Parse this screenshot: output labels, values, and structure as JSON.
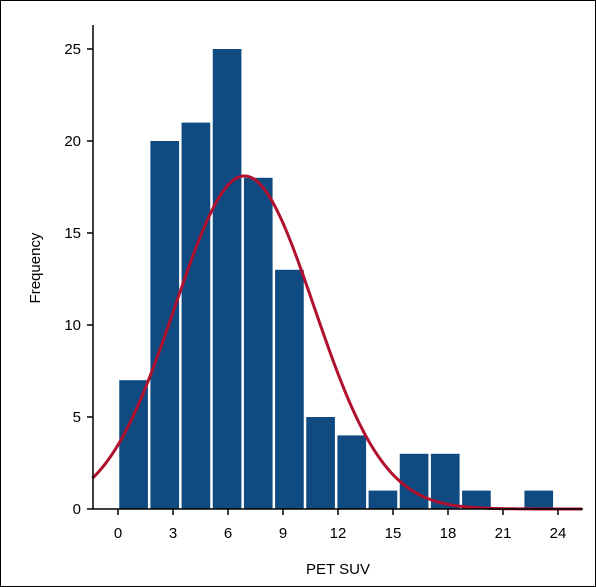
{
  "chart_data": {
    "type": "bar",
    "xlabel": "PET SUV",
    "ylabel": "Frequency",
    "xlim": [
      -1.5,
      25.5
    ],
    "ylim": [
      0,
      26
    ],
    "x_ticks": [
      0,
      3,
      6,
      9,
      12,
      15,
      18,
      21,
      24
    ],
    "y_ticks": [
      0,
      5,
      10,
      15,
      20,
      25
    ],
    "bin_width": 1.7,
    "bins": [
      {
        "start": 0.0,
        "value": 7
      },
      {
        "start": 1.7,
        "value": 20
      },
      {
        "start": 3.4,
        "value": 21
      },
      {
        "start": 5.1,
        "value": 25
      },
      {
        "start": 6.8,
        "value": 18
      },
      {
        "start": 8.5,
        "value": 13
      },
      {
        "start": 10.2,
        "value": 5
      },
      {
        "start": 11.9,
        "value": 4
      },
      {
        "start": 13.6,
        "value": 1
      },
      {
        "start": 15.3,
        "value": 3
      },
      {
        "start": 17.0,
        "value": 3
      },
      {
        "start": 18.7,
        "value": 1
      },
      {
        "start": 20.4,
        "value": 0
      },
      {
        "start": 22.1,
        "value": 1
      }
    ],
    "fit_curve": {
      "type": "normal",
      "mean": 6.9,
      "std_dev": 3.8,
      "peak": 18.1
    },
    "bar_color": "#0f4a80",
    "curve_color": "#b0112e",
    "grid": false
  }
}
